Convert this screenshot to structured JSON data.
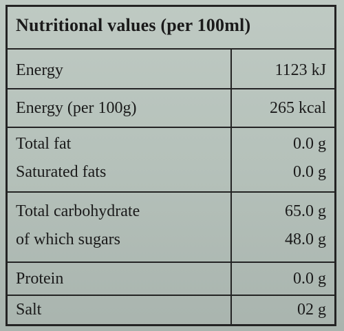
{
  "table": {
    "title": "Nutritional values (per 100ml)",
    "rows": [
      {
        "lines": [
          {
            "name": "Energy",
            "value": "1123 kJ"
          }
        ]
      },
      {
        "lines": [
          {
            "name": "Energy (per 100g)",
            "value": "265 kcal"
          }
        ]
      },
      {
        "lines": [
          {
            "name": "Total fat",
            "value": "0.0 g"
          },
          {
            "name": "Saturated fats",
            "value": "0.0 g"
          }
        ]
      },
      {
        "lines": [
          {
            "name": "Total carbohydrate",
            "value": "65.0 g"
          },
          {
            "name": "of which sugars",
            "value": "48.0 g"
          }
        ]
      },
      {
        "lines": [
          {
            "name": "Protein",
            "value": "0.0 g"
          }
        ]
      },
      {
        "lines": [
          {
            "name": "Salt",
            "value": "02 g"
          }
        ]
      }
    ]
  },
  "colors": {
    "background": "#b8c4bd",
    "ink": "#1a1a1a",
    "rule": "#232323"
  }
}
